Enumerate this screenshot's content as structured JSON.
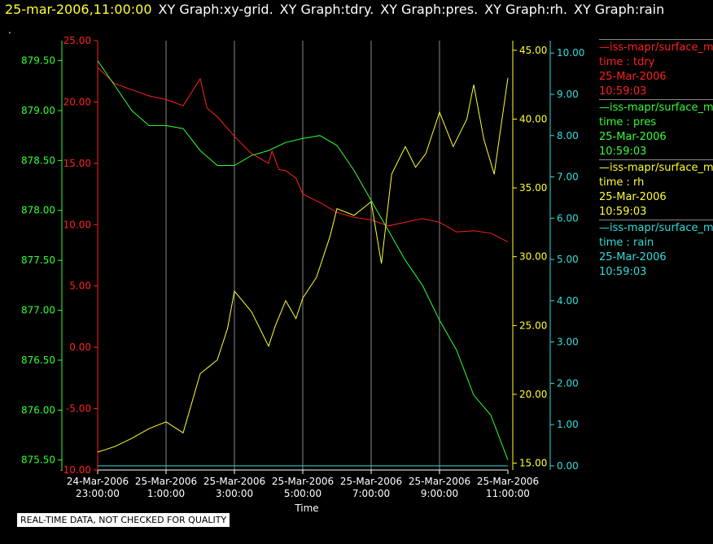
{
  "header": {
    "timestamp": "25-mar-2006,11:00:00",
    "graphs": [
      "XY Graph:xy-grid.",
      "XY Graph:tdry.",
      "XY Graph:pres.",
      "XY Graph:rh.",
      "XY Graph:rain"
    ],
    "dot": "."
  },
  "legend": [
    {
      "title": "—iss-mapr/surface_m",
      "label": "time : tdry",
      "date": "25-Mar-2006",
      "time": "10:59:03",
      "color": "#ff2020"
    },
    {
      "title": "—iss-mapr/surface_m",
      "label": "time : pres",
      "date": "25-Mar-2006",
      "time": "10:59:03",
      "color": "#33ff33"
    },
    {
      "title": "—iss-mapr/surface_m",
      "label": "time : rh",
      "date": "25-Mar-2006",
      "time": "10:59:03",
      "color": "#ffff33"
    },
    {
      "title": "—iss-mapr/surface_m",
      "label": "time : rain",
      "date": "25-Mar-2006",
      "time": "10:59:03",
      "color": "#33dddd"
    }
  ],
  "notice": "REAL-TIME DATA, NOT CHECKED FOR QUALITY",
  "chart_data": {
    "type": "line",
    "xlabel": "Time",
    "x_ticks": [
      {
        "line1": "24-Mar-2006",
        "line2": "23:00:00"
      },
      {
        "line1": "25-Mar-2006",
        "line2": "1:00:00"
      },
      {
        "line1": "25-Mar-2006",
        "line2": "3:00:00"
      },
      {
        "line1": "25-Mar-2006",
        "line2": "5:00:00"
      },
      {
        "line1": "25-Mar-2006",
        "line2": "7:00:00"
      },
      {
        "line1": "25-Mar-2006",
        "line2": "9:00:00"
      },
      {
        "line1": "25-Mar-2006",
        "line2": "11:00:00"
      }
    ],
    "x_range_hours": [
      0,
      12
    ],
    "grid": "vertical",
    "axes": {
      "pres": {
        "side": "left-outer",
        "color": "#33ff33",
        "min": 875.4,
        "max": 879.7,
        "ticks": [
          "875.50",
          "876.00",
          "876.50",
          "877.00",
          "877.50",
          "878.00",
          "878.50",
          "879.00",
          "879.50"
        ]
      },
      "tdry": {
        "side": "left-inner",
        "color": "#ff2020",
        "min": -10,
        "max": 25,
        "ticks": [
          "-10.00",
          "-5.00",
          "0.00",
          "5.00",
          "10.00",
          "15.00",
          "20.00",
          "25.00"
        ]
      },
      "rh": {
        "side": "right-inner",
        "color": "#ffff33",
        "min": 14.5,
        "max": 45.7,
        "ticks": [
          "15.00",
          "20.00",
          "25.00",
          "30.00",
          "35.00",
          "40.00",
          "45.00"
        ]
      },
      "rain": {
        "side": "right-outer",
        "color": "#33dddd",
        "min": -0.1,
        "max": 10.3,
        "ticks": [
          "0.00",
          "1.00",
          "2.00",
          "3.00",
          "4.00",
          "5.00",
          "6.00",
          "7.00",
          "8.00",
          "9.00",
          "10.00"
        ]
      }
    },
    "series": [
      {
        "name": "tdry",
        "axis": "tdry",
        "color": "#ff2020",
        "x": [
          0,
          0.5,
          1,
          1.5,
          2,
          2.5,
          3,
          3.2,
          3.5,
          4,
          4.5,
          5,
          5.1,
          5.3,
          5.5,
          5.8,
          6,
          6.5,
          7,
          7.5,
          8,
          8.5,
          9,
          9.5,
          10,
          10.5,
          11,
          11.5,
          12
        ],
        "y": [
          22.8,
          21.5,
          21.0,
          20.5,
          20.2,
          19.7,
          21.9,
          19.5,
          18.8,
          17.2,
          15.8,
          15.0,
          16.0,
          14.5,
          14.4,
          13.8,
          12.5,
          11.8,
          11.0,
          10.6,
          10.4,
          9.9,
          10.2,
          10.5,
          10.2,
          9.4,
          9.5,
          9.3,
          8.6
        ]
      },
      {
        "name": "pres",
        "axis": "pres",
        "color": "#33ff33",
        "x": [
          0,
          0.3,
          0.6,
          1,
          1.5,
          2,
          2.5,
          3,
          3.5,
          4,
          4.5,
          5,
          5.5,
          6,
          6.5,
          7,
          7.5,
          8,
          8.5,
          9,
          9.5,
          10,
          10.5,
          11,
          11.5,
          12
        ],
        "y": [
          879.5,
          879.35,
          879.2,
          879.0,
          878.85,
          878.85,
          878.82,
          878.6,
          878.45,
          878.45,
          878.55,
          878.6,
          878.68,
          878.72,
          878.75,
          878.65,
          878.4,
          878.1,
          877.8,
          877.5,
          877.25,
          876.9,
          876.6,
          876.15,
          875.95,
          875.5
        ]
      },
      {
        "name": "rh",
        "axis": "rh",
        "color": "#ffff33",
        "x": [
          0,
          0.5,
          1,
          1.5,
          2,
          2.5,
          3,
          3.5,
          3.8,
          4,
          4.5,
          5,
          5.2,
          5.5,
          5.8,
          6,
          6.4,
          6.8,
          7,
          7.5,
          8,
          8.3,
          8.6,
          9,
          9.3,
          9.6,
          10,
          10.4,
          10.8,
          11,
          11.3,
          11.6,
          12
        ],
        "y": [
          15.8,
          16.2,
          16.8,
          17.5,
          18.0,
          17.2,
          21.5,
          22.5,
          24.8,
          27.5,
          26.0,
          23.5,
          25.0,
          26.8,
          25.5,
          27.0,
          28.5,
          31.5,
          33.5,
          33.0,
          34.0,
          29.5,
          36.0,
          38.0,
          36.5,
          37.5,
          40.5,
          38.0,
          40.0,
          42.5,
          38.5,
          36.0,
          43.0
        ]
      },
      {
        "name": "rain",
        "axis": "rain",
        "color": "#33dddd",
        "x": [
          0,
          12
        ],
        "y": [
          0,
          0
        ]
      }
    ]
  }
}
